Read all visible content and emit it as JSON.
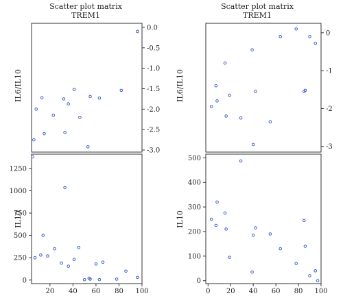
{
  "chart_data": [
    {
      "type": "scatter",
      "title": "Scatter plot matrix",
      "subtitle": "TREM1",
      "panels": [
        {
          "id": "left-top",
          "ylabel": "IL6/IL10",
          "xlim": [
            4,
            100
          ],
          "ylim": [
            -3.05,
            0.1
          ],
          "yticks": [
            "0.0",
            "-0.5",
            "-1.0",
            "-1.5",
            "-2.0",
            "-2.5",
            "-3.0"
          ],
          "yticks_values": [
            0,
            -0.5,
            -1.0,
            -1.5,
            -2.0,
            -2.5,
            -3.0
          ],
          "points": [
            {
              "x": 6,
              "y": -2.75
            },
            {
              "x": 8,
              "y": -2.0
            },
            {
              "x": 13,
              "y": -1.72
            },
            {
              "x": 15,
              "y": -2.6
            },
            {
              "x": 23,
              "y": -2.15
            },
            {
              "x": 32,
              "y": -1.75
            },
            {
              "x": 33,
              "y": -2.57
            },
            {
              "x": 36,
              "y": -1.87
            },
            {
              "x": 41,
              "y": -1.52
            },
            {
              "x": 46,
              "y": -2.2
            },
            {
              "x": 53,
              "y": -2.92
            },
            {
              "x": 55,
              "y": -1.69
            },
            {
              "x": 63,
              "y": -1.73
            },
            {
              "x": 82,
              "y": -1.54
            },
            {
              "x": 96,
              "y": -0.1
            }
          ]
        },
        {
          "id": "left-bottom",
          "ylabel": "IL10",
          "xlim": [
            4,
            100
          ],
          "ylim": [
            -40,
            1410
          ],
          "xticks": [
            "20",
            "40",
            "60",
            "80",
            "100"
          ],
          "xticks_values": [
            20,
            40,
            60,
            80,
            100
          ],
          "yticks": [
            "0",
            "250",
            "500",
            "750",
            "1000",
            "1250"
          ],
          "yticks_values": [
            0,
            250,
            500,
            750,
            1000,
            1250
          ],
          "points": [
            {
              "x": 5,
              "y": 1380
            },
            {
              "x": 7,
              "y": 250
            },
            {
              "x": 12,
              "y": 280
            },
            {
              "x": 14,
              "y": 500
            },
            {
              "x": 18,
              "y": 270
            },
            {
              "x": 24,
              "y": 350
            },
            {
              "x": 30,
              "y": 190
            },
            {
              "x": 33,
              "y": 1035
            },
            {
              "x": 36,
              "y": 155
            },
            {
              "x": 41,
              "y": 230
            },
            {
              "x": 45,
              "y": 365
            },
            {
              "x": 50,
              "y": 5
            },
            {
              "x": 54,
              "y": 20
            },
            {
              "x": 55,
              "y": 10
            },
            {
              "x": 60,
              "y": 180
            },
            {
              "x": 63,
              "y": 5
            },
            {
              "x": 66,
              "y": 200
            },
            {
              "x": 78,
              "y": 10
            },
            {
              "x": 86,
              "y": 100
            },
            {
              "x": 96,
              "y": 30
            }
          ]
        }
      ]
    },
    {
      "type": "scatter",
      "title": "Scatter plot matrix",
      "subtitle": "TREM1",
      "panels": [
        {
          "id": "right-top",
          "ylabel": "IL6/IL10",
          "xlim": [
            -2,
            100
          ],
          "ylim": [
            -3.15,
            0.25
          ],
          "yticks": [
            "0",
            "-1",
            "-2",
            "-3"
          ],
          "yticks_values": [
            0,
            -1,
            -2,
            -3
          ],
          "points": [
            {
              "x": 3,
              "y": -1.95
            },
            {
              "x": 7,
              "y": -1.4
            },
            {
              "x": 8,
              "y": -1.8
            },
            {
              "x": 15,
              "y": -0.8
            },
            {
              "x": 16,
              "y": -2.2
            },
            {
              "x": 19,
              "y": -1.65
            },
            {
              "x": 29,
              "y": -2.25
            },
            {
              "x": 39,
              "y": -0.45
            },
            {
              "x": 40,
              "y": -2.95
            },
            {
              "x": 42,
              "y": -1.55
            },
            {
              "x": 55,
              "y": -2.35
            },
            {
              "x": 64,
              "y": -0.1
            },
            {
              "x": 78,
              "y": 0.1
            },
            {
              "x": 85,
              "y": -1.55
            },
            {
              "x": 86,
              "y": -1.52
            },
            {
              "x": 90,
              "y": -0.1
            },
            {
              "x": 95,
              "y": -0.28
            }
          ]
        },
        {
          "id": "right-bottom",
          "ylabel": "IL10",
          "xlim": [
            -2,
            100
          ],
          "ylim": [
            -12,
            515
          ],
          "xticks": [
            "0",
            "20",
            "40",
            "60",
            "80",
            "100"
          ],
          "xticks_values": [
            0,
            20,
            40,
            60,
            80,
            100
          ],
          "yticks": [
            "0",
            "100",
            "200",
            "300",
            "400",
            "500"
          ],
          "yticks_values": [
            0,
            100,
            200,
            300,
            400,
            500
          ],
          "points": [
            {
              "x": 3,
              "y": 250
            },
            {
              "x": 7,
              "y": 225
            },
            {
              "x": 8,
              "y": 320
            },
            {
              "x": 15,
              "y": 275
            },
            {
              "x": 16,
              "y": 210
            },
            {
              "x": 19,
              "y": 95
            },
            {
              "x": 29,
              "y": 487
            },
            {
              "x": 39,
              "y": 35
            },
            {
              "x": 40,
              "y": 185
            },
            {
              "x": 42,
              "y": 215
            },
            {
              "x": 55,
              "y": 190
            },
            {
              "x": 64,
              "y": 130
            },
            {
              "x": 78,
              "y": 70
            },
            {
              "x": 85,
              "y": 245
            },
            {
              "x": 86,
              "y": 140
            },
            {
              "x": 90,
              "y": 20
            },
            {
              "x": 95,
              "y": 40
            },
            {
              "x": 97,
              "y": 0
            }
          ]
        }
      ]
    }
  ]
}
